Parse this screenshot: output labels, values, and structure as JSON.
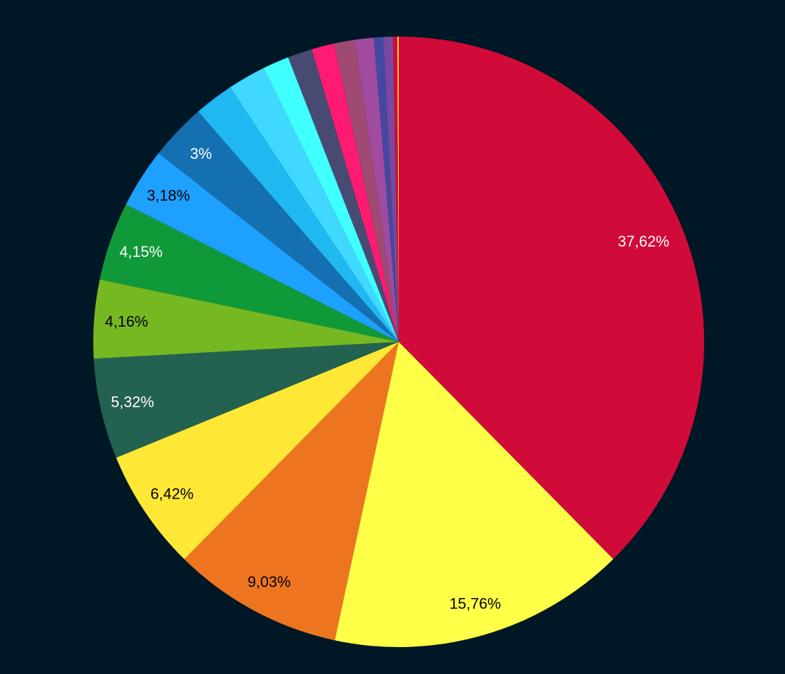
{
  "chart_data": {
    "type": "pie",
    "start": "top",
    "direction": "clockwise",
    "background": "#001726",
    "slices": [
      {
        "value": 37.62,
        "label": "37,62%",
        "color": "#d10b39",
        "label_color": "#ffffff"
      },
      {
        "value": 15.76,
        "label": "15,76%",
        "color": "#ffff47",
        "label_color": "#000000"
      },
      {
        "value": 9.03,
        "label": "9,03%",
        "color": "#ee7520",
        "label_color": "#000000"
      },
      {
        "value": 6.42,
        "label": "6,42%",
        "color": "#ffe835",
        "label_color": "#000000"
      },
      {
        "value": 5.32,
        "label": "5,32%",
        "color": "#236150",
        "label_color": "#ffffff"
      },
      {
        "value": 4.16,
        "label": "4,16%",
        "color": "#76b822",
        "label_color": "#000000"
      },
      {
        "value": 4.15,
        "label": "4,15%",
        "color": "#109939",
        "label_color": "#ffffff"
      },
      {
        "value": 3.18,
        "label": "3,18%",
        "color": "#1ea0ff",
        "label_color": "#000000"
      },
      {
        "value": 3.0,
        "label": "3%",
        "color": "#1570b2",
        "label_color": "#ffffff"
      },
      {
        "value": 2.1,
        "label": "",
        "color": "#20b8f0"
      },
      {
        "value": 2.0,
        "label": "",
        "color": "#40d8ff"
      },
      {
        "value": 1.4,
        "label": "",
        "color": "#40ffff"
      },
      {
        "value": 1.3,
        "label": "",
        "color": "#494a72"
      },
      {
        "value": 1.2,
        "label": "",
        "color": "#ff1a72"
      },
      {
        "value": 1.1,
        "label": "",
        "color": "#a04a72"
      },
      {
        "value": 1.0,
        "label": "",
        "color": "#a04aa0"
      },
      {
        "value": 0.5,
        "label": "",
        "color": "#4548a0"
      },
      {
        "value": 0.5,
        "label": "",
        "color": "#7a48a0"
      },
      {
        "value": 0.23,
        "label": "",
        "color": "#d10b39"
      },
      {
        "value": 0.07,
        "label": "",
        "color": "#ffe835"
      }
    ]
  }
}
